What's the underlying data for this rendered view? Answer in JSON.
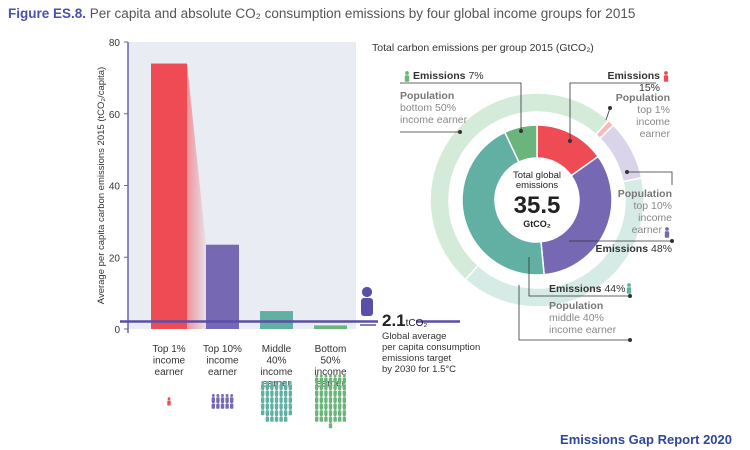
{
  "figure": {
    "label": "Figure ES.8.",
    "title": "Per capita and absolute CO₂ consumption emissions by four global income groups for 2015"
  },
  "footer": "Emissions Gap Report 2020",
  "chart_data": [
    {
      "type": "bar",
      "ylabel": "Average per capita carbon emissions 2015 (tCO₂/capita)",
      "ylim": [
        0,
        80
      ],
      "yticks": [
        "0",
        "20",
        "40",
        "60",
        "80"
      ],
      "categories": [
        [
          "Top 1%",
          "income",
          "earner"
        ],
        [
          "Top 10%",
          "income",
          "earner"
        ],
        [
          "Middle",
          "40%",
          "income",
          "earner"
        ],
        [
          "Bottom",
          "50%",
          "income",
          "earner"
        ]
      ],
      "values": [
        74,
        23.5,
        5,
        1
      ],
      "colors": [
        "#ef4b55",
        "#7768b4",
        "#62b0a3",
        "#6bb47b"
      ],
      "people_counts": [
        1,
        10,
        40,
        50
      ],
      "reference": {
        "value": 2.1,
        "value_label": "2.1",
        "unit": "tCO₂",
        "description": [
          "Global average",
          "per capita consumption",
          "emissions target",
          "by 2030 for 1.5°C"
        ],
        "color": "#5a4fa8"
      }
    },
    {
      "type": "pie",
      "title": "Total carbon emissions per group 2015 (GtCO₂)",
      "center": {
        "line1": "Total global",
        "line2": "emissions",
        "value": "35.5",
        "unit": "GtCO₂"
      },
      "emissions_ring": [
        {
          "name": "Top 1%",
          "share": 15,
          "color": "#ef4b55"
        },
        {
          "name": "Top 10% (excl. top 1%)",
          "share": 33,
          "color": "#7768b4"
        },
        {
          "name": "Middle 40%",
          "share": 44,
          "color": "#62b0a3"
        },
        {
          "name": "Bottom 50%",
          "share": 7,
          "color": "#6bb47b"
        }
      ],
      "population_ring": [
        {
          "name": "Top 1%",
          "share": 1,
          "color": "#f7b9bd"
        },
        {
          "name": "Top 10%",
          "share": 9,
          "color": "#d9d4ea"
        },
        {
          "name": "Middle 40%",
          "share": 40,
          "color": "#d6ebe6"
        },
        {
          "name": "Bottom 50%",
          "share": 50,
          "color": "#d5ebd9"
        }
      ],
      "labels": {
        "em_bottom": {
          "k": "Emissions",
          "v": "7%"
        },
        "pop_bottom": [
          "Population",
          "bottom 50%",
          "income earner"
        ],
        "em_top1": {
          "k": "Emissions",
          "v": "15%"
        },
        "pop_top1": [
          "Population",
          "top 1%",
          "income",
          "earner"
        ],
        "pop_top10": [
          "Population",
          "top 10%",
          "income",
          "earner"
        ],
        "em_top10": {
          "k": "Emissions",
          "v": "48%"
        },
        "em_middle": {
          "k": "Emissions",
          "v": "44%"
        },
        "pop_middle": [
          "Population",
          "middle 40%",
          "income earner"
        ]
      }
    }
  ]
}
